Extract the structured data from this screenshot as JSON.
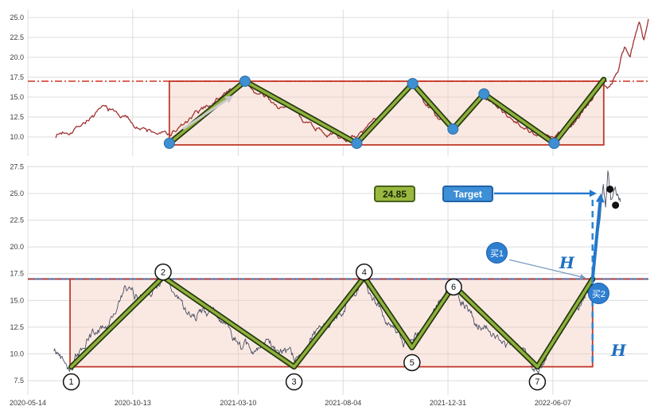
{
  "figure": {
    "background": "#ffffff",
    "grid_color": "#dcdcdc",
    "tick_color": "#3c3c3c",
    "resistance_color": "#cc3322",
    "rectangle_fill": "#f3c7ba",
    "rectangle_edge": "#c03a2b"
  },
  "xticks": {
    "positions": [
      0,
      0.169,
      0.339,
      0.508,
      0.677,
      0.846
    ],
    "labels": [
      "2020-05-14",
      "2020-10-13",
      "2021-03-10",
      "2021-08-04",
      "2021-12-31",
      "2022-06-07"
    ]
  },
  "chart_data": [
    {
      "id": "top",
      "type": "line",
      "title": "",
      "ylim": [
        7.6,
        26.0
      ],
      "yticks": [
        10.0,
        12.5,
        15.0,
        17.5,
        20.0,
        22.5,
        25.0
      ],
      "ytick_labels": [
        "10.0",
        "12.5",
        "15.0",
        "17.5",
        "20.0",
        "22.5",
        "25.0"
      ],
      "resistance_level": 17.0,
      "rectangle": {
        "x0": 0.228,
        "x1": 0.928,
        "y0": 9.0,
        "y1": 17.0
      },
      "price": {
        "color": "#a03232",
        "anchors": [
          [
            0.045,
            10.2
          ],
          [
            0.07,
            11.0
          ],
          [
            0.1,
            12.5
          ],
          [
            0.125,
            13.5
          ],
          [
            0.16,
            12.3
          ],
          [
            0.19,
            10.8
          ],
          [
            0.228,
            10.2
          ],
          [
            0.26,
            12.0
          ],
          [
            0.3,
            14.5
          ],
          [
            0.33,
            16.0
          ],
          [
            0.35,
            16.8
          ],
          [
            0.37,
            15.5
          ],
          [
            0.4,
            14.0
          ],
          [
            0.43,
            13.2
          ],
          [
            0.46,
            11.5
          ],
          [
            0.5,
            10.0
          ],
          [
            0.53,
            9.7
          ],
          [
            0.56,
            12.0
          ],
          [
            0.59,
            14.5
          ],
          [
            0.62,
            16.5
          ],
          [
            0.64,
            14.5
          ],
          [
            0.66,
            12.5
          ],
          [
            0.685,
            11.2
          ],
          [
            0.71,
            13.2
          ],
          [
            0.735,
            15.2
          ],
          [
            0.76,
            13.5
          ],
          [
            0.79,
            12.0
          ],
          [
            0.82,
            10.5
          ],
          [
            0.848,
            9.7
          ],
          [
            0.87,
            11.0
          ],
          [
            0.9,
            13.5
          ],
          [
            0.923,
            16.8
          ],
          [
            0.935,
            16.2
          ],
          [
            0.95,
            18.0
          ],
          [
            0.962,
            21.0
          ],
          [
            0.97,
            19.5
          ],
          [
            0.985,
            24.5
          ],
          [
            0.992,
            22.2
          ],
          [
            1.0,
            25.4
          ]
        ]
      },
      "zigzag": {
        "color_core": "#8fae3c",
        "color_edge": "#22380e",
        "points": [
          [
            0.228,
            9.2
          ],
          [
            0.35,
            17.0
          ],
          [
            0.53,
            9.2
          ],
          [
            0.62,
            16.7
          ],
          [
            0.685,
            11.0
          ],
          [
            0.735,
            15.4
          ],
          [
            0.848,
            9.2
          ],
          [
            0.928,
            17.2
          ]
        ],
        "pivot_dot_color": "#3f8fd2",
        "pivot_dots": [
          0,
          1,
          2,
          3,
          4,
          5,
          6
        ]
      },
      "trend_arrow": {
        "from": [
          0.25,
          11.0
        ],
        "to": [
          0.331,
          15.2
        ]
      }
    },
    {
      "id": "bottom",
      "type": "line",
      "title": "",
      "ylim": [
        6.2,
        27.6
      ],
      "yticks": [
        7.5,
        10.0,
        12.5,
        15.0,
        17.5,
        20.0,
        22.5,
        25.0,
        27.5
      ],
      "ytick_labels": [
        "7.5",
        "10.0",
        "12.5",
        "15.0",
        "17.5",
        "20.0",
        "22.5",
        "25.0",
        "27.5"
      ],
      "resistance_level": 17.0,
      "breakout_line_color": "#3a7abf",
      "rectangle": {
        "x0": 0.068,
        "x1": 0.91,
        "y0": 8.8,
        "y1": 17.0
      },
      "price": {
        "color": "#4a4f63",
        "anchors": [
          [
            0.042,
            10.2
          ],
          [
            0.055,
            9.8
          ],
          [
            0.07,
            9.0
          ],
          [
            0.1,
            11.5
          ],
          [
            0.13,
            13.0
          ],
          [
            0.155,
            15.8
          ],
          [
            0.175,
            15.2
          ],
          [
            0.2,
            16.5
          ],
          [
            0.218,
            17.2
          ],
          [
            0.235,
            15.5
          ],
          [
            0.26,
            14.0
          ],
          [
            0.3,
            13.8
          ],
          [
            0.33,
            12.0
          ],
          [
            0.36,
            10.0
          ],
          [
            0.395,
            10.8
          ],
          [
            0.429,
            8.9
          ],
          [
            0.46,
            11.5
          ],
          [
            0.49,
            13.5
          ],
          [
            0.52,
            15.5
          ],
          [
            0.542,
            17.1
          ],
          [
            0.56,
            15.0
          ],
          [
            0.585,
            12.5
          ],
          [
            0.605,
            11.2
          ],
          [
            0.619,
            10.7
          ],
          [
            0.64,
            12.5
          ],
          [
            0.66,
            14.5
          ],
          [
            0.686,
            16.3
          ],
          [
            0.7,
            15.0
          ],
          [
            0.72,
            13.0
          ],
          [
            0.75,
            12.0
          ],
          [
            0.775,
            11.0
          ],
          [
            0.8,
            10.0
          ],
          [
            0.821,
            8.9
          ],
          [
            0.84,
            10.5
          ],
          [
            0.86,
            12.0
          ],
          [
            0.88,
            14.0
          ],
          [
            0.9,
            15.5
          ],
          [
            0.91,
            17.0
          ],
          [
            0.916,
            19.5
          ],
          [
            0.922,
            23.0
          ],
          [
            0.927,
            26.0
          ],
          [
            0.931,
            24.2
          ],
          [
            0.935,
            27.4
          ],
          [
            0.94,
            24.5
          ],
          [
            0.945,
            25.8
          ],
          [
            0.955,
            24.3
          ]
        ]
      },
      "zigzag": {
        "color_core": "#8fae3c",
        "color_edge": "#22380e",
        "points": [
          [
            0.07,
            8.8
          ],
          [
            0.218,
            17.2
          ],
          [
            0.429,
            8.8
          ],
          [
            0.542,
            17.2
          ],
          [
            0.619,
            10.6
          ],
          [
            0.686,
            16.4
          ],
          [
            0.821,
            8.8
          ],
          [
            0.91,
            17.0
          ]
        ]
      },
      "pivots": [
        {
          "label": "1",
          "x": 0.07,
          "y": 8.8,
          "place": "below"
        },
        {
          "label": "2",
          "x": 0.218,
          "y": 17.2,
          "place": "above"
        },
        {
          "label": "3",
          "x": 0.429,
          "y": 8.8,
          "place": "below"
        },
        {
          "label": "4",
          "x": 0.542,
          "y": 17.2,
          "place": "above"
        },
        {
          "label": "5",
          "x": 0.619,
          "y": 10.6,
          "place": "below"
        },
        {
          "label": "6",
          "x": 0.686,
          "y": 16.4,
          "place": "on"
        },
        {
          "label": "7",
          "x": 0.821,
          "y": 8.8,
          "place": "below"
        }
      ],
      "annotations": {
        "measure_badge": "24.85",
        "target_label": "Target",
        "buy1_label": "买1",
        "buy2_label": "买2",
        "height_label": "H",
        "target_price": 25.0,
        "breakout_x": 0.91,
        "accent_blue": "#2277cc",
        "measure_arrow": {
          "from": [
            0.91,
            17.0
          ],
          "to": [
            0.9235,
            25.0
          ]
        },
        "projection_line": {
          "x": 0.91,
          "y_top": 25.0,
          "y_bottom": 8.8
        },
        "buy1_arrow": {
          "from": [
            0.776,
            18.8
          ],
          "to": [
            0.899,
            17.1
          ]
        },
        "high_markers": [
          {
            "x": 0.938,
            "y": 25.4
          },
          {
            "x": 0.947,
            "y": 23.9
          }
        ]
      }
    }
  ]
}
